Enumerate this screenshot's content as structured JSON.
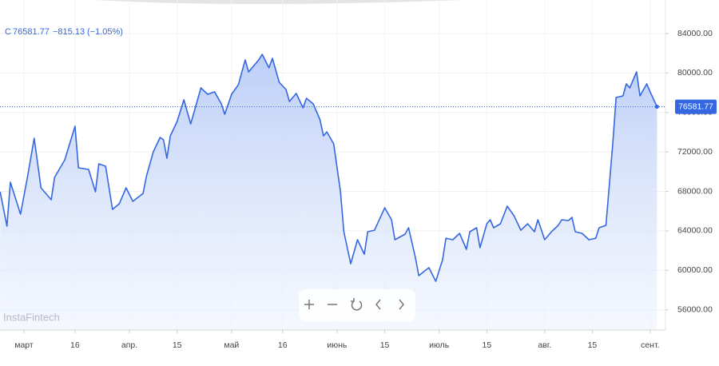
{
  "chart_data": {
    "type": "area",
    "symbol": "C",
    "change": "−815.13",
    "change_pct": "(−1.05%)",
    "watermark": "InstaFintech",
    "color": "#3567e0",
    "grid": true,
    "x": [
      -7,
      -5,
      -4,
      -1,
      1,
      3,
      5,
      8,
      9,
      12,
      15,
      16,
      19,
      21,
      22,
      24,
      26,
      28,
      30,
      32,
      35,
      36,
      38,
      40,
      41,
      42,
      43,
      45,
      47,
      49,
      50,
      52,
      54,
      56,
      58,
      59,
      61,
      63,
      65,
      66,
      69,
      70,
      72,
      73,
      75,
      77,
      78,
      80,
      82,
      83,
      85,
      87,
      88,
      89,
      91,
      93,
      94,
      96,
      98,
      100,
      101,
      103,
      106,
      108,
      109,
      112,
      113,
      115,
      116,
      118,
      119,
      121,
      123,
      124,
      126,
      128,
      130,
      131,
      133,
      134,
      136,
      137,
      138,
      140,
      142,
      144,
      146,
      148,
      150,
      151,
      153,
      155,
      157,
      158,
      160,
      161,
      162,
      164,
      166,
      168,
      169,
      171,
      173,
      174,
      176,
      177,
      178,
      180,
      181,
      183,
      184,
      186
    ],
    "values": [
      67960,
      64480,
      68930,
      65690,
      69420,
      73390,
      68370,
      67150,
      69420,
      71200,
      74600,
      70390,
      70230,
      67960,
      70800,
      70550,
      66180,
      66750,
      68370,
      66990,
      67800,
      69580,
      72010,
      73470,
      73230,
      71360,
      73630,
      75090,
      77280,
      74850,
      76060,
      78490,
      77840,
      78090,
      76870,
      75820,
      77840,
      78820,
      81330,
      80110,
      81330,
      81890,
      80520,
      81490,
      79060,
      78330,
      77110,
      77930,
      76470,
      77440,
      76870,
      75250,
      73630,
      74040,
      72820,
      67960,
      63910,
      60670,
      63100,
      61640,
      63910,
      64070,
      66340,
      65130,
      63100,
      63670,
      64320,
      61320,
      59460,
      60020,
      60270,
      58890,
      61080,
      63260,
      63100,
      63750,
      62130,
      63910,
      64320,
      62290,
      64720,
      65130,
      64320,
      64720,
      66500,
      65530,
      64070,
      64720,
      63910,
      65130,
      63100,
      63910,
      64560,
      65130,
      65050,
      65370,
      63910,
      63750,
      63100,
      63260,
      64320,
      64560,
      72820,
      77520,
      77680,
      78900,
      78490,
      80110,
      77680,
      78900,
      78090,
      76581.77
    ],
    "xlim": [
      -7.04,
      188.5
    ],
    "ylim": [
      53950,
      87400
    ],
    "xticks": [
      {
        "value": 0,
        "label": "март"
      },
      {
        "value": 15,
        "label": "16"
      },
      {
        "value": 31,
        "label": "апр."
      },
      {
        "value": 45,
        "label": "15"
      },
      {
        "value": 61,
        "label": "май"
      },
      {
        "value": 76,
        "label": "16"
      },
      {
        "value": 92,
        "label": "июнь"
      },
      {
        "value": 106,
        "label": "15"
      },
      {
        "value": 122,
        "label": "июль"
      },
      {
        "value": 136,
        "label": "15"
      },
      {
        "value": 153,
        "label": "авг."
      },
      {
        "value": 167,
        "label": "15"
      },
      {
        "value": 184,
        "label": "сент."
      }
    ],
    "yticks": [
      {
        "value": 56000,
        "label": "56000.00"
      },
      {
        "value": 60000,
        "label": "60000.00"
      },
      {
        "value": 64000,
        "label": "64000.00"
      },
      {
        "value": 68000,
        "label": "68000.00"
      },
      {
        "value": 72000,
        "label": "72000.00"
      },
      {
        "value": 76000,
        "label": "76000.00"
      },
      {
        "value": 80000,
        "label": "80000.00"
      },
      {
        "value": 84000,
        "label": "84000.00"
      }
    ]
  }
}
